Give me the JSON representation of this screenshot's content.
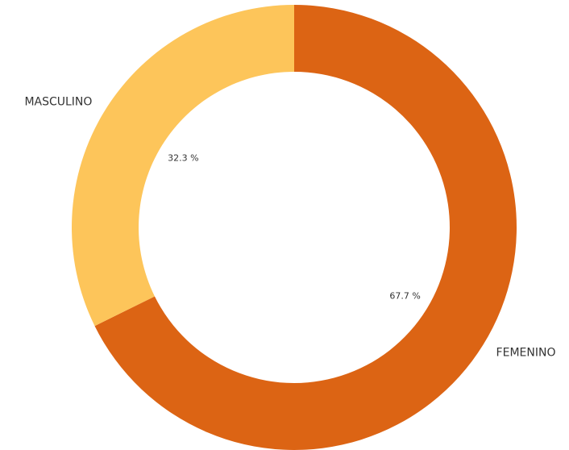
{
  "chart_data": {
    "type": "donut",
    "categories": [
      "FEMENINO",
      "MASCULINO"
    ],
    "values": [
      67.7,
      32.3
    ],
    "value_labels": [
      "67.7 %",
      "32.3 %"
    ],
    "colors": [
      "#dc6414",
      "#fdc55a"
    ]
  }
}
